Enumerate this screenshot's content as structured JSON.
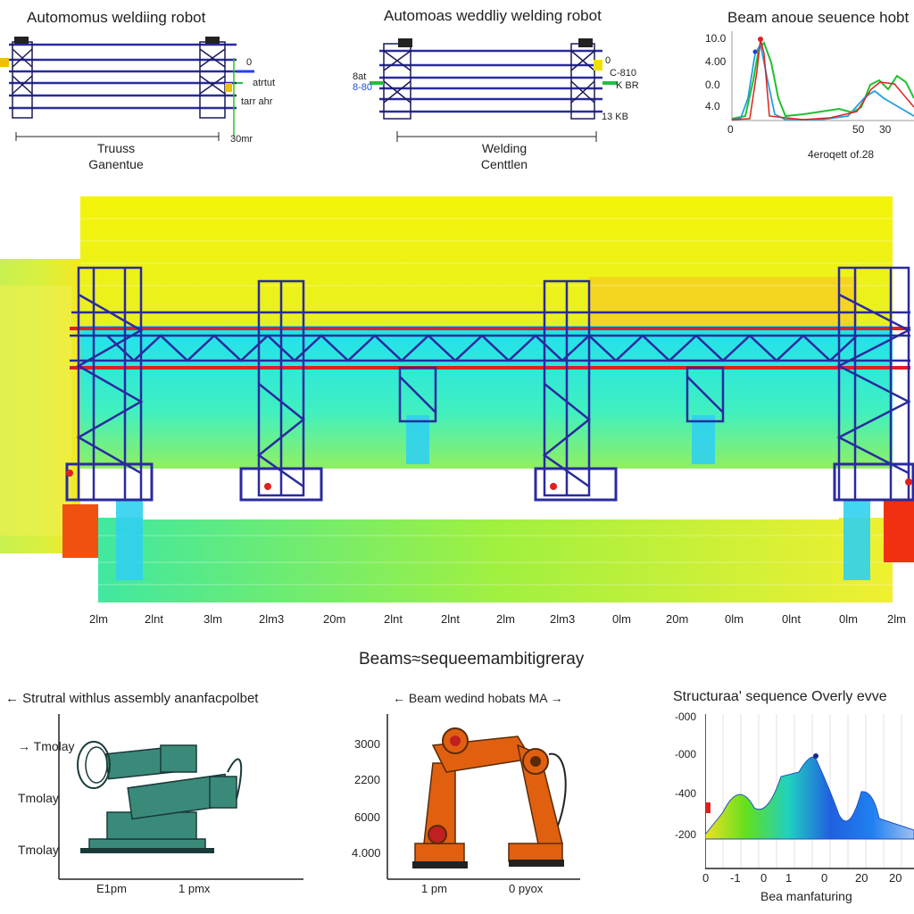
{
  "top_left": {
    "title": "Automomus weldiing robot",
    "caption_line1": "Truuss",
    "caption_line2": "Ganentue",
    "side_labels": [
      "0",
      "atrtut",
      "tarr ahr",
      "30mr"
    ]
  },
  "top_middle": {
    "title": "Automoas weddliy welding robot",
    "caption_line1": "Welding",
    "caption_line2": "Centtlen",
    "left_labels": [
      "8at",
      "8-80"
    ],
    "right_labels": [
      "0",
      "C-810",
      "K BR",
      "13 KB"
    ]
  },
  "top_right": {
    "title": "Beam anoue seuence hobt",
    "y_ticks": [
      "10.0",
      "4.00",
      "0.0",
      "4.0"
    ],
    "x_ticks": [
      "0",
      "50",
      "30"
    ],
    "footer": "4eroqett of.28"
  },
  "main_diagram": {
    "ruler_labels": [
      "2lm",
      "2lnt",
      "3lm",
      "2lm3",
      "20m",
      "2lnt",
      "2lnt",
      "2lm",
      "2lm3",
      "0lm",
      "20m",
      "0lm",
      "0lnt",
      "0lm",
      "2lm"
    ]
  },
  "section_title": "Beams≈sequeemambitigreray",
  "bottom_left": {
    "title": "Strutral withlus assembly ananfacpolbet",
    "y_labels": [
      "Tmolay",
      "Tmolay",
      "Tmolay"
    ],
    "x_ticks": [
      "E1pm",
      "1 pmx"
    ]
  },
  "bottom_middle": {
    "title": "Beam wedind hobats",
    "title_suffix": "MA",
    "y_ticks": [
      "3000",
      "2200",
      "6000",
      "4.000"
    ],
    "x_ticks": [
      "1 pm",
      "0 pyox"
    ]
  },
  "bottom_right": {
    "title": "Structuraa' sequence Overly evve",
    "y_ticks": [
      "-000",
      "-000",
      "-400",
      "-200"
    ],
    "x_ticks": [
      "0",
      "-1",
      "0",
      "1",
      "0",
      "20",
      "20"
    ],
    "xlabel": "Bea manfaturing"
  },
  "colors": {
    "truss_blue": "#2a2aa0",
    "truss_red": "#e02020",
    "heat_yellow": "#f4f40a",
    "heat_cyan": "#20e0f0",
    "robot_orange": "#e06010",
    "machine_teal": "#3a8a7a"
  }
}
